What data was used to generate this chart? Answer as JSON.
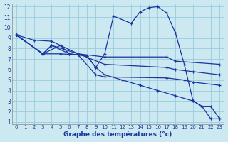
{
  "title": "Graphe des températures (°c)",
  "background_color": "#cce8f0",
  "grid_color": "#99cce0",
  "line_color": "#1a35a0",
  "xlim": [
    -0.5,
    23.5
  ],
  "ylim": [
    0.8,
    12.2
  ],
  "xticks": [
    0,
    1,
    2,
    3,
    4,
    5,
    6,
    7,
    8,
    9,
    10,
    11,
    12,
    13,
    14,
    15,
    16,
    17,
    18,
    19,
    20,
    21,
    22,
    23
  ],
  "yticks": [
    1,
    2,
    3,
    4,
    5,
    6,
    7,
    8,
    9,
    10,
    11,
    12
  ],
  "lines": [
    {
      "x": [
        0,
        2,
        4,
        5,
        6,
        7,
        8,
        9,
        10,
        11,
        13,
        14,
        15,
        16,
        17,
        18,
        19,
        20,
        21,
        22,
        23
      ],
      "y": [
        9.3,
        8.8,
        8.7,
        8.3,
        7.5,
        7.4,
        7.3,
        6.2,
        7.5,
        11.1,
        10.4,
        11.5,
        11.9,
        12.0,
        11.4,
        9.5,
        6.5,
        3.0,
        2.5,
        1.3,
        1.3
      ]
    },
    {
      "x": [
        0,
        3,
        4,
        7,
        10,
        17,
        18,
        23
      ],
      "y": [
        9.3,
        7.5,
        8.3,
        7.5,
        7.2,
        7.2,
        6.8,
        6.5
      ]
    },
    {
      "x": [
        0,
        3,
        5,
        7,
        10,
        17,
        18,
        20,
        23
      ],
      "y": [
        9.3,
        7.5,
        8.3,
        7.5,
        6.5,
        6.2,
        6.0,
        5.8,
        5.5
      ]
    },
    {
      "x": [
        0,
        3,
        5,
        7,
        9,
        10,
        17,
        19,
        20,
        23
      ],
      "y": [
        9.3,
        7.5,
        7.5,
        7.4,
        5.5,
        5.3,
        5.2,
        5.0,
        4.8,
        4.5
      ]
    },
    {
      "x": [
        0,
        3,
        4,
        6,
        8,
        9,
        10,
        12,
        14,
        16,
        18,
        20,
        21,
        22,
        23
      ],
      "y": [
        9.3,
        7.5,
        8.3,
        7.5,
        7.3,
        6.2,
        5.5,
        5.0,
        4.5,
        4.0,
        3.5,
        3.0,
        2.5,
        2.5,
        1.3
      ]
    }
  ]
}
